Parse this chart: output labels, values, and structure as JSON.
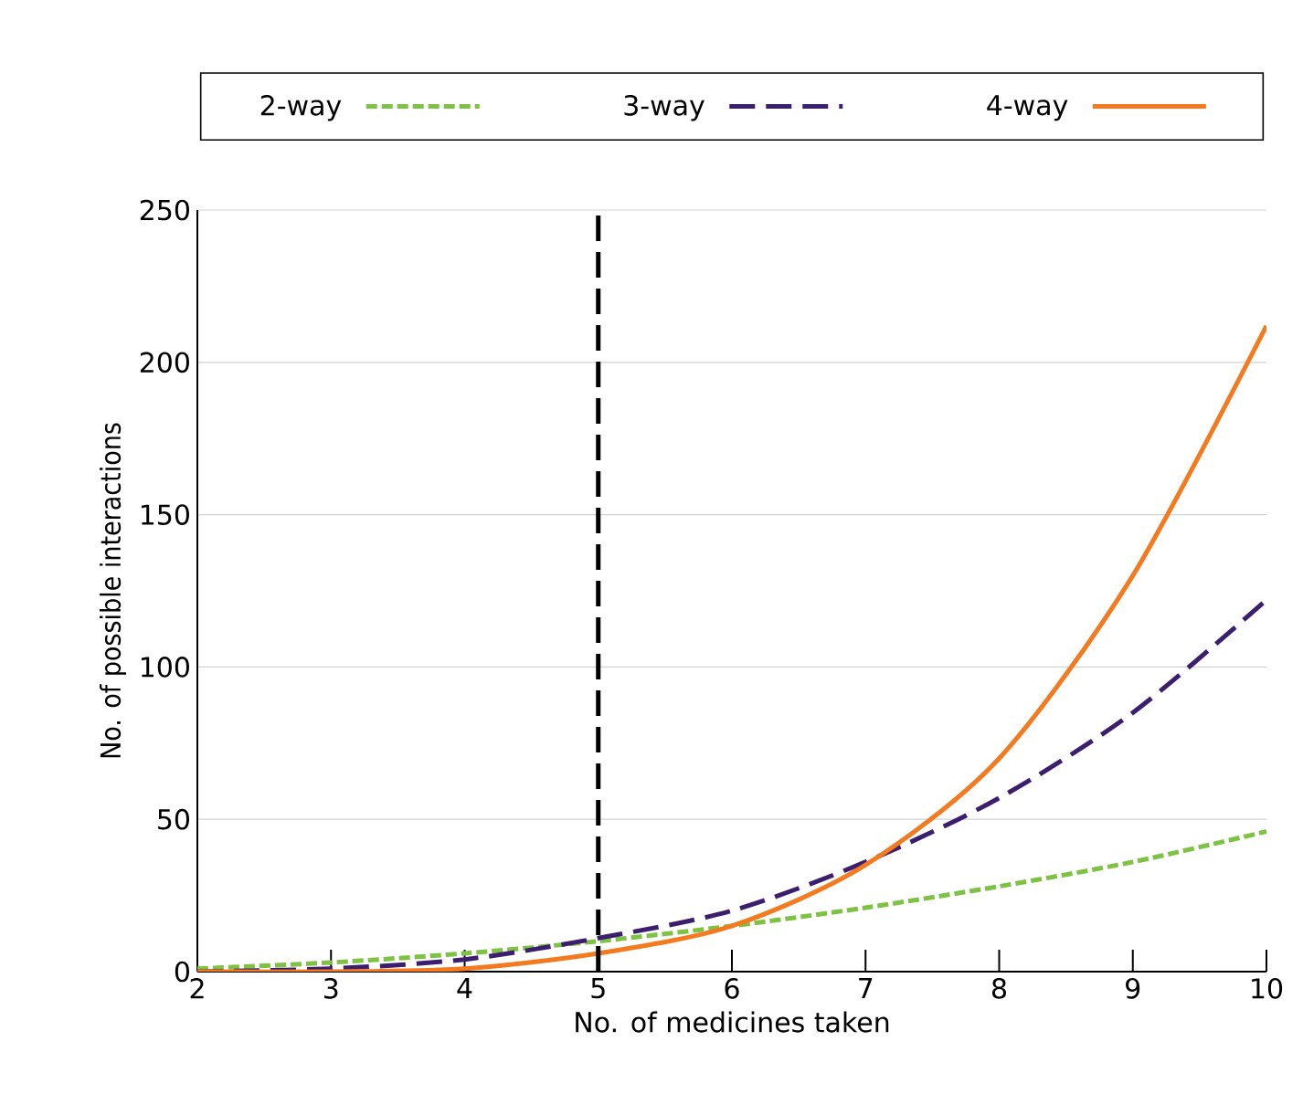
{
  "chart_data": {
    "type": "line",
    "xlabel": "No. of medicines taken",
    "ylabel": "No. of possible interactions",
    "x": [
      2,
      3,
      4,
      5,
      6,
      7,
      8,
      9,
      10
    ],
    "series": [
      {
        "name": "2-way",
        "color": "#7dc242",
        "line_style": "dotted",
        "values": [
          1,
          3,
          6,
          10,
          15,
          21,
          28,
          36,
          46
        ]
      },
      {
        "name": "3-way",
        "color": "#3b1f6e",
        "line_style": "dashed",
        "values": [
          0,
          1,
          4,
          11,
          20,
          36,
          57,
          85,
          122
        ]
      },
      {
        "name": "4-way",
        "color": "#f47a20",
        "line_style": "solid",
        "values": [
          0,
          0,
          1,
          6,
          15,
          35,
          70,
          130,
          212
        ]
      }
    ],
    "xlim": [
      2,
      10
    ],
    "ylim": [
      0,
      250
    ],
    "xticks": [
      2,
      3,
      4,
      5,
      6,
      7,
      8,
      9,
      10
    ],
    "yticks": [
      0,
      50,
      100,
      150,
      200,
      250
    ],
    "ref_lines": [
      {
        "axis": "x",
        "value": 5,
        "color": "#000000",
        "line_style": "dashed"
      }
    ],
    "grid": "y",
    "legend": "top",
    "marker": "none"
  }
}
